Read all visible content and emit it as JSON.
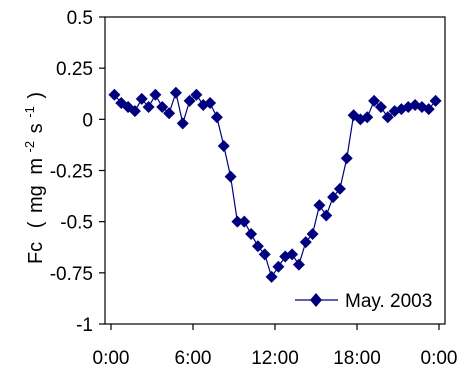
{
  "chart_data": {
    "type": "line",
    "title": "",
    "xlabel": "",
    "ylabel": "Fc (mg m⁻² s⁻¹)",
    "ylabel_parts": {
      "symbol": "Fc",
      "open": "(",
      "unit1": "mg",
      "unit2": "m",
      "exp1": "-2",
      "unit3": "s",
      "exp2": "-1",
      "close": ")"
    },
    "xlim": [
      0,
      24
    ],
    "ylim": [
      -1,
      0.5
    ],
    "x_ticks": [
      0,
      6,
      12,
      18,
      24
    ],
    "x_tick_labels": [
      "0:00",
      "6:00",
      "12:00",
      "18:00",
      "0:00"
    ],
    "y_ticks": [
      0.5,
      0.25,
      0,
      -0.25,
      -0.5,
      -0.75,
      -1
    ],
    "y_tick_labels": [
      "0.5",
      "0.25",
      "0",
      "-0.25",
      "-0.5",
      "-0.75",
      "-1"
    ],
    "grid": false,
    "legend_position": "bottom-right",
    "series": [
      {
        "name": "May. 2003",
        "color": "#00007f",
        "marker": "diamond",
        "x": [
          0.25,
          0.75,
          1.25,
          1.75,
          2.25,
          2.75,
          3.25,
          3.75,
          4.25,
          4.75,
          5.25,
          5.75,
          6.25,
          6.75,
          7.25,
          7.75,
          8.25,
          8.75,
          9.25,
          9.75,
          10.25,
          10.75,
          11.25,
          11.75,
          12.25,
          12.75,
          13.25,
          13.75,
          14.25,
          14.75,
          15.25,
          15.75,
          16.25,
          16.75,
          17.25,
          17.75,
          18.25,
          18.75,
          19.25,
          19.75,
          20.25,
          20.75,
          21.25,
          21.75,
          22.25,
          22.75,
          23.25,
          23.75
        ],
        "y": [
          0.12,
          0.08,
          0.06,
          0.04,
          0.1,
          0.06,
          0.12,
          0.06,
          0.03,
          0.13,
          -0.02,
          0.09,
          0.12,
          0.07,
          0.08,
          0.01,
          -0.13,
          -0.28,
          -0.5,
          -0.5,
          -0.56,
          -0.62,
          -0.66,
          -0.77,
          -0.72,
          -0.67,
          -0.66,
          -0.71,
          -0.6,
          -0.56,
          -0.42,
          -0.47,
          -0.38,
          -0.34,
          -0.19,
          0.02,
          0.0,
          0.01,
          0.09,
          0.06,
          0.01,
          0.04,
          0.05,
          0.06,
          0.07,
          0.06,
          0.05,
          0.09
        ]
      }
    ]
  }
}
